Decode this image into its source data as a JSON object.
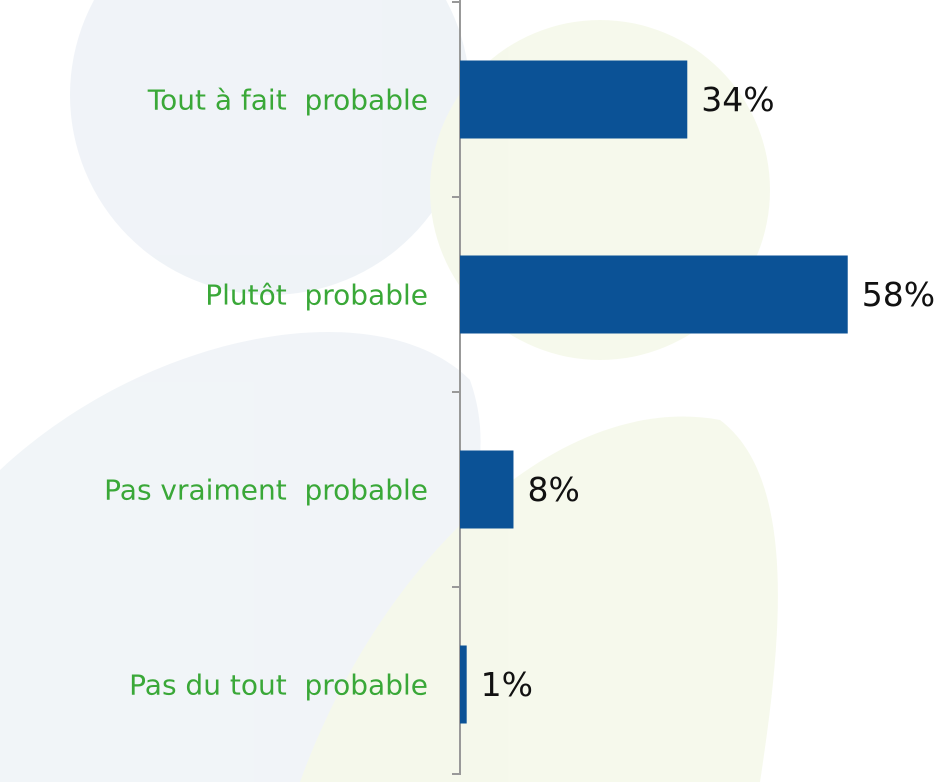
{
  "chart_data": {
    "type": "hbar",
    "categories": [
      "Tout à fait  probable",
      "Plutôt  probable",
      "Pas vraiment  probable",
      "Pas du tout  probable"
    ],
    "values": [
      34,
      58,
      8,
      1
    ],
    "value_labels": [
      "34%",
      "58%",
      "8%",
      "1%"
    ],
    "color": "#0b5296",
    "label_color": "#3aa838",
    "xlim": [
      0,
      73
    ]
  }
}
